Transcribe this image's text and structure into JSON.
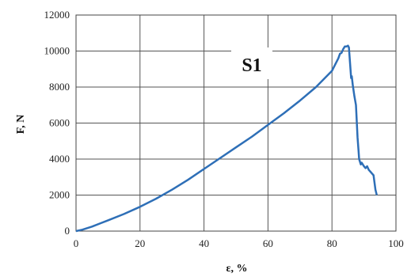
{
  "chart_data": {
    "type": "line",
    "title": "",
    "annotation": "S1",
    "xlabel": "ε, %",
    "ylabel": "F, N",
    "xlim": [
      0,
      100
    ],
    "ylim": [
      0,
      12000
    ],
    "x_ticks": [
      "0",
      "20",
      "40",
      "60",
      "80",
      "100"
    ],
    "y_ticks": [
      "0",
      "2000",
      "4000",
      "6000",
      "8000",
      "10000",
      "12000"
    ],
    "grid": true,
    "series": [
      {
        "color": "#2e6fb7",
        "x": [
          0,
          2,
          5,
          10,
          15,
          20,
          25,
          30,
          35,
          40,
          45,
          50,
          55,
          60,
          65,
          70,
          75,
          80,
          82,
          82.5,
          83,
          83.5,
          84,
          84.5,
          85,
          85.3,
          86,
          86.2,
          86.5,
          87,
          87.3,
          87.5,
          88,
          88.3,
          88.5,
          89,
          89.3,
          90,
          90.5,
          91,
          91.5,
          92,
          92.5,
          93,
          93.3,
          93.6,
          94
        ],
        "y": [
          0,
          80,
          250,
          600,
          950,
          1350,
          1800,
          2300,
          2850,
          3450,
          4050,
          4650,
          5250,
          5900,
          6550,
          7250,
          8000,
          8900,
          9600,
          9850,
          9900,
          10100,
          10250,
          10250,
          10300,
          10200,
          8500,
          8600,
          8100,
          7500,
          7200,
          7000,
          5200,
          4500,
          4000,
          3700,
          3800,
          3600,
          3500,
          3600,
          3400,
          3300,
          3200,
          3100,
          2700,
          2300,
          2000
        ]
      }
    ]
  }
}
